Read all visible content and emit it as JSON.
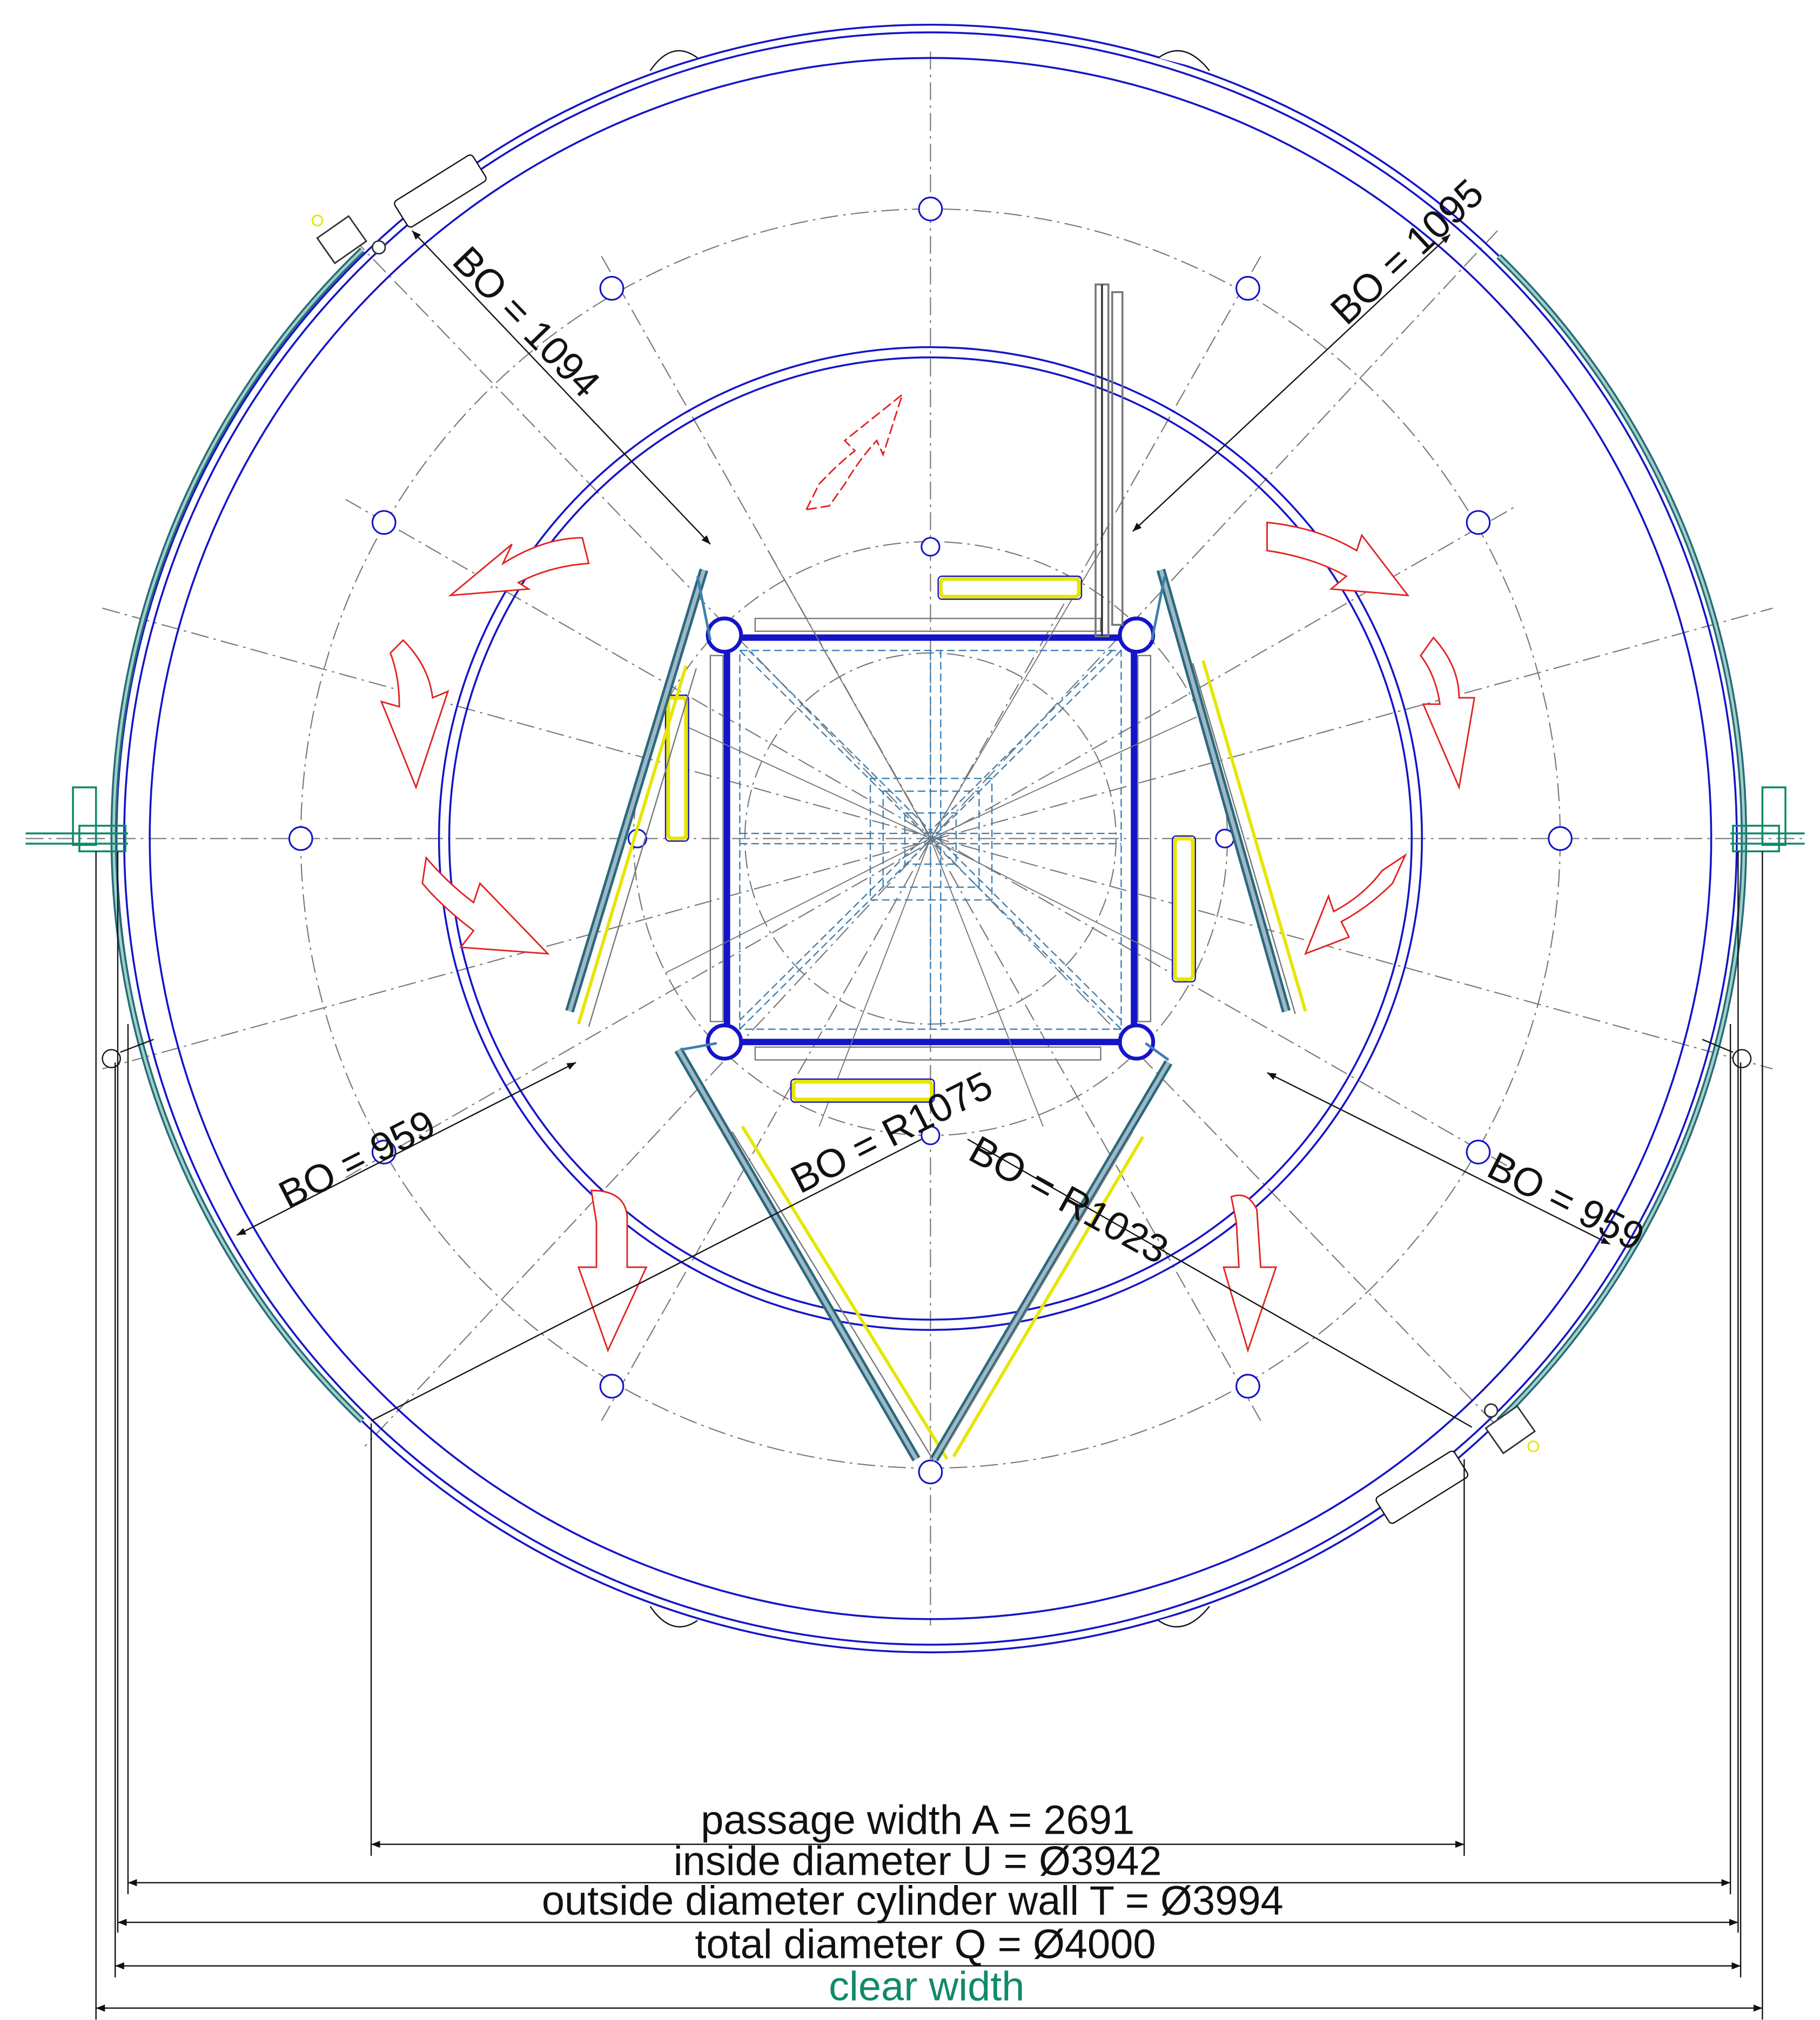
{
  "colors": {
    "structure": "#1414c8",
    "centerline": "#777777",
    "dimension": "#111111",
    "rotation_arrow": "#e22222",
    "wing_glass": "#9fb7c8",
    "wing_frame": "#2a6a7a",
    "gasket": "#e6e600",
    "canopy": "#3d7fb0",
    "clear_width": "#108a6a"
  },
  "labels": {
    "bo_1094": "BO = 1094",
    "bo_1095": "BO = 1095",
    "bo_959_left": "BO = 959",
    "bo_959_right": "BO = 959",
    "bo_r1075": "BO = R1075",
    "bo_r1023": "BO = R1023"
  },
  "dimensions": {
    "passage_width": "passage width A = 2691",
    "inside_diameter": "inside diameter U = Ø3942",
    "outside_diameter": "outside diameter cylinder wall T = Ø3994",
    "total_diameter": "total diameter Q = Ø4000",
    "clear_width": "clear width"
  },
  "icons": {
    "rotation_arrows": "curved-arrow-icon",
    "bolt_holes": "circle-icon"
  }
}
